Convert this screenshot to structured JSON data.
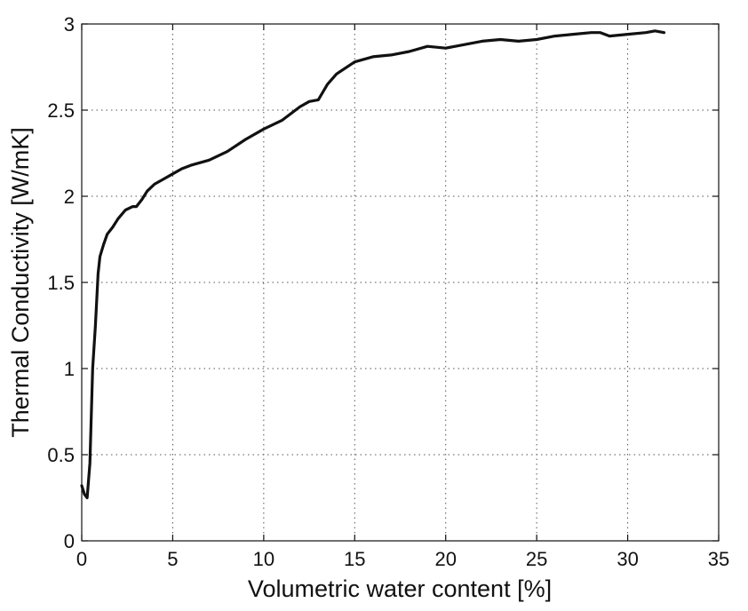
{
  "chart_data": {
    "type": "line",
    "xlabel": "Volumetric water content [%]",
    "ylabel": "Thermal Conductivity [W/mK]",
    "xlim": [
      0,
      35
    ],
    "ylim": [
      0,
      3
    ],
    "xticks": [
      0,
      5,
      10,
      15,
      20,
      25,
      30,
      35
    ],
    "yticks": [
      0,
      0.5,
      1,
      1.5,
      2,
      2.5,
      3
    ],
    "xtick_labels": [
      "0",
      "5",
      "10",
      "15",
      "20",
      "25",
      "30",
      "35"
    ],
    "ytick_labels": [
      "0",
      "0.5",
      "1",
      "1.5",
      "2",
      "2.5",
      "3"
    ],
    "grid": true,
    "series": [
      {
        "color": "#111111",
        "x": [
          0.0,
          0.15,
          0.3,
          0.45,
          0.6,
          0.75,
          0.9,
          1.0,
          1.2,
          1.4,
          1.7,
          2.0,
          2.4,
          2.8,
          3.0,
          3.3,
          3.6,
          4.0,
          4.5,
          5.0,
          5.5,
          6.0,
          7.0,
          8.0,
          9.0,
          10.0,
          11.0,
          12.0,
          12.5,
          13.0,
          13.5,
          14.0,
          15.0,
          16.0,
          17.0,
          18.0,
          19.0,
          20.0,
          21.0,
          22.0,
          23.0,
          24.0,
          25.0,
          26.0,
          27.0,
          28.0,
          28.5,
          29.0,
          30.0,
          31.0,
          31.5,
          32.0
        ],
        "y": [
          0.32,
          0.27,
          0.25,
          0.45,
          1.0,
          1.25,
          1.55,
          1.65,
          1.72,
          1.78,
          1.82,
          1.87,
          1.92,
          1.94,
          1.94,
          1.98,
          2.03,
          2.07,
          2.1,
          2.13,
          2.16,
          2.18,
          2.21,
          2.26,
          2.33,
          2.39,
          2.44,
          2.52,
          2.55,
          2.56,
          2.65,
          2.71,
          2.78,
          2.81,
          2.82,
          2.84,
          2.87,
          2.86,
          2.88,
          2.9,
          2.91,
          2.9,
          2.91,
          2.93,
          2.94,
          2.95,
          2.95,
          2.93,
          2.94,
          2.95,
          2.96,
          2.95
        ]
      }
    ]
  }
}
